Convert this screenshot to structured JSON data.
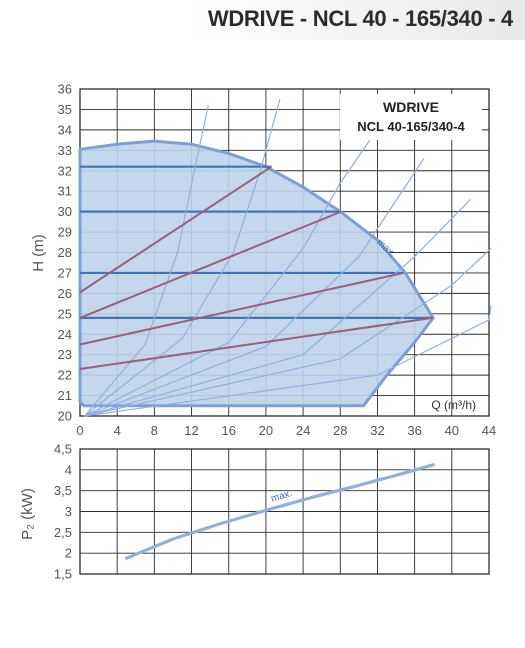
{
  "header": {
    "title": "WDRIVE - NCL 40 - 165/340 - 4"
  },
  "colors": {
    "grid": "#2b2b2b",
    "envelope_fill": "#bfd3ea",
    "envelope_stroke": "#7aa0d6",
    "speed_lines": "#8fb0e0",
    "system_curves": "#8fb0e0",
    "head_lines": "#3e74be",
    "efficiency_lines": "#99607a",
    "power_curve": "#8fb0e0"
  },
  "chart_data": [
    {
      "type": "line",
      "title": "WDRIVE",
      "subtitle": "NCL 40-165/340-4",
      "ylabel": "H (m)",
      "xlabel": "Q (m³/h)",
      "xlim": [
        0,
        44
      ],
      "ylim": [
        20,
        36
      ],
      "x_ticks": [
        "0",
        "4",
        "8",
        "12",
        "16",
        "20",
        "24",
        "28",
        "32",
        "36",
        "40",
        "44"
      ],
      "y_ticks": [
        "20",
        "21",
        "22",
        "23",
        "24",
        "25",
        "26",
        "27",
        "28",
        "29",
        "30",
        "31",
        "32",
        "33",
        "34",
        "35",
        "36"
      ],
      "grid": true,
      "annotation": "max.",
      "envelope": [
        [
          0,
          33.05
        ],
        [
          4,
          33.3
        ],
        [
          8,
          33.45
        ],
        [
          12,
          33.3
        ],
        [
          16,
          32.85
        ],
        [
          20,
          32.2
        ],
        [
          24,
          31.2
        ],
        [
          28,
          30.0
        ],
        [
          32,
          28.6
        ],
        [
          35,
          27.0
        ],
        [
          38,
          24.8
        ],
        [
          36,
          23.6
        ],
        [
          33,
          22.0
        ],
        [
          30.5,
          20.5
        ],
        [
          0.4,
          20.5
        ],
        [
          0,
          20.7
        ]
      ],
      "speed_lines": [
        [
          [
            0.5,
            20.0
          ],
          [
            7,
            23.5
          ],
          [
            10.5,
            28.0
          ],
          [
            12.3,
            32.0
          ],
          [
            13.8,
            35.2
          ]
        ],
        [
          [
            0.5,
            20.0
          ],
          [
            11,
            23.8
          ],
          [
            16.5,
            28.0
          ],
          [
            19.4,
            32.0
          ],
          [
            21.5,
            35.5
          ]
        ],
        [
          [
            0.5,
            20.0
          ],
          [
            16,
            23.6
          ],
          [
            24,
            28.2
          ],
          [
            28,
            31.4
          ],
          [
            33,
            34.7
          ]
        ],
        [
          [
            0.5,
            20.0
          ],
          [
            20,
            23.4
          ],
          [
            30,
            27.8
          ],
          [
            37,
            32.6
          ]
        ],
        [
          [
            0.5,
            20.0
          ],
          [
            24,
            23.0
          ],
          [
            36,
            27.8
          ],
          [
            42,
            30.6
          ]
        ],
        [
          [
            0.5,
            20.0
          ],
          [
            28,
            22.8
          ],
          [
            40,
            26.4
          ],
          [
            45,
            28.2
          ]
        ],
        [
          [
            0.5,
            20.0
          ],
          [
            32,
            22.0
          ],
          [
            44,
            24.7
          ],
          [
            48,
            25.4
          ]
        ]
      ],
      "head_lines": [
        {
          "y": 32.2,
          "x": [
            0,
            20.6
          ]
        },
        {
          "y": 30.0,
          "x": [
            0,
            28.1
          ]
        },
        {
          "y": 27.0,
          "x": [
            0,
            34.8
          ]
        },
        {
          "y": 24.8,
          "x": [
            0,
            37.9
          ]
        }
      ],
      "efficiency_lines": [
        [
          [
            0,
            26.05
          ],
          [
            20.6,
            32.2
          ]
        ],
        [
          [
            0,
            24.8
          ],
          [
            28.1,
            30.0
          ]
        ],
        [
          [
            0,
            23.5
          ],
          [
            34.8,
            27.0
          ]
        ],
        [
          [
            0,
            22.3
          ],
          [
            37.9,
            24.8
          ]
        ]
      ]
    },
    {
      "type": "line",
      "ylabel": "P₂ (kW)",
      "xlim": [
        0,
        44
      ],
      "ylim": [
        1.5,
        4.5
      ],
      "y_ticks": [
        "1,5",
        "2",
        "2,5",
        "3",
        "3,5",
        "4",
        "4,5"
      ],
      "grid": true,
      "annotation": "max.",
      "series": [
        {
          "x": [
            5,
            10,
            15,
            20,
            25,
            30,
            35,
            38
          ],
          "values": [
            1.88,
            2.34,
            2.7,
            3.03,
            3.34,
            3.63,
            3.93,
            4.12
          ]
        }
      ]
    }
  ]
}
